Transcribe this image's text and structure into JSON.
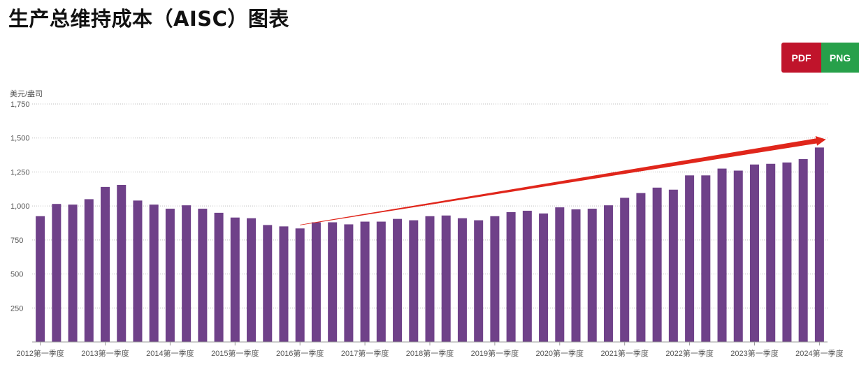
{
  "page": {
    "title": "生产总维持成本（AISC）图表"
  },
  "toolbar": {
    "pdf_label": "PDF",
    "png_label": "PNG"
  },
  "colors": {
    "bar": "#6f4189",
    "trend_arrow": "#e0261b",
    "pdf_button": "#c0142b",
    "png_button": "#27a04a"
  },
  "chart_data": {
    "type": "bar",
    "title": "",
    "xlabel": "",
    "ylabel": "美元/盎司",
    "ylim": [
      0,
      1750
    ],
    "yticks": [
      250,
      500,
      750,
      1000,
      1250,
      1500,
      1750
    ],
    "ytick_labels": [
      "250",
      "500",
      "750",
      "1,000",
      "1,250",
      "1,500",
      "1,750"
    ],
    "grid": "horizontal dotted",
    "categories": [
      "2012第一季度",
      "2012第二季度",
      "2012第三季度",
      "2012第四季度",
      "2013第一季度",
      "2013第二季度",
      "2013第三季度",
      "2013第四季度",
      "2014第一季度",
      "2014第二季度",
      "2014第三季度",
      "2014第四季度",
      "2015第一季度",
      "2015第二季度",
      "2015第三季度",
      "2015第四季度",
      "2016第一季度",
      "2016第二季度",
      "2016第三季度",
      "2016第四季度",
      "2017第一季度",
      "2017第二季度",
      "2017第三季度",
      "2017第四季度",
      "2018第一季度",
      "2018第二季度",
      "2018第三季度",
      "2018第四季度",
      "2019第一季度",
      "2019第二季度",
      "2019第三季度",
      "2019第四季度",
      "2020第一季度",
      "2020第二季度",
      "2020第三季度",
      "2020第四季度",
      "2021第一季度",
      "2021第二季度",
      "2021第三季度",
      "2021第四季度",
      "2022第一季度",
      "2022第二季度",
      "2022第三季度",
      "2022第四季度",
      "2023第一季度",
      "2023第二季度",
      "2023第三季度",
      "2023第四季度",
      "2024第一季度"
    ],
    "xtick_labels": [
      "2012第一季度",
      "2013第一季度",
      "2014第一季度",
      "2015第一季度",
      "2016第一季度",
      "2017第一季度",
      "2018第一季度",
      "2019第一季度",
      "2020第一季度",
      "2021第一季度",
      "2022第一季度",
      "2023第一季度",
      "2024第一季度"
    ],
    "values": [
      925,
      1015,
      1010,
      1050,
      1140,
      1155,
      1040,
      1010,
      980,
      1005,
      980,
      950,
      915,
      910,
      860,
      850,
      835,
      880,
      880,
      865,
      885,
      885,
      905,
      895,
      925,
      930,
      910,
      895,
      925,
      955,
      965,
      945,
      990,
      975,
      980,
      1005,
      1060,
      1095,
      1135,
      1120,
      1225,
      1225,
      1275,
      1260,
      1305,
      1310,
      1320,
      1345,
      1430
    ],
    "annotations": [
      {
        "type": "trend-arrow",
        "from_category": "2016第一季度",
        "from_value": 860,
        "to_category": "2024第一季度",
        "to_value": 1490
      }
    ]
  }
}
